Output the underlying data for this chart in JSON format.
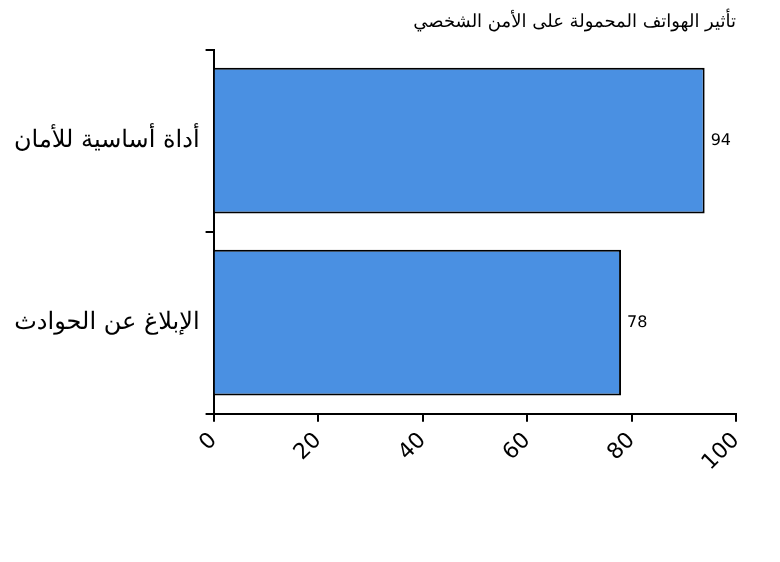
{
  "chart_data": {
    "type": "bar",
    "orientation": "horizontal",
    "title": "تأثير الهواتف المحمولة على الأمن الشخصي",
    "categories": [
      "أداة أساسية للأمان",
      "الإبلاغ عن الحوادث"
    ],
    "values": [
      94,
      78
    ],
    "color": "#4a90e2",
    "xlim": [
      0,
      100
    ],
    "xticks": [
      0,
      20,
      40,
      60,
      80,
      100
    ],
    "grid": false,
    "data_labels": true
  }
}
